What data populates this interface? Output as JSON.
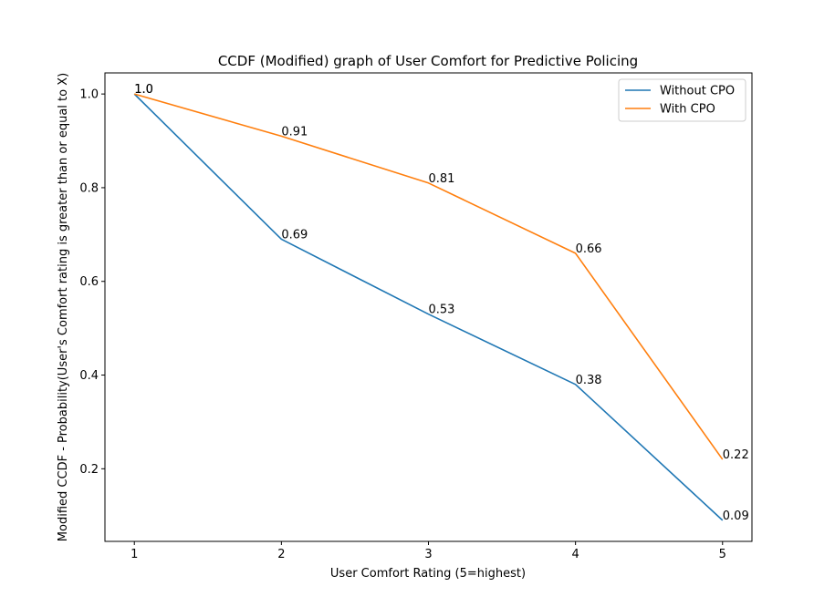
{
  "chart_data": {
    "type": "line",
    "title": "CCDF (Modified) graph of User Comfort for Predictive Policing",
    "xlabel": "User Comfort Rating (5=highest)",
    "ylabel": "Modified CCDF - Probability(User's Comfort rating is greater than or equal to X)",
    "x": [
      1,
      2,
      3,
      4,
      5
    ],
    "x_ticks": [
      "1",
      "2",
      "3",
      "4",
      "5"
    ],
    "y_ticks": [
      "0.2",
      "0.4",
      "0.6",
      "0.8",
      "1.0"
    ],
    "xlim": [
      0.8,
      5.2
    ],
    "ylim": [
      0.045,
      1.045
    ],
    "grid": false,
    "legend_position": "top-right",
    "series": [
      {
        "name": "Without CPO",
        "color": "#1f77b4",
        "values": [
          1.0,
          0.69,
          0.53,
          0.38,
          0.09
        ],
        "labels": [
          "1.0",
          "0.69",
          "0.53",
          "0.38",
          "0.09"
        ]
      },
      {
        "name": "With CPO",
        "color": "#ff7f0e",
        "values": [
          1.0,
          0.91,
          0.81,
          0.66,
          0.22
        ],
        "labels": [
          "1.0",
          "0.91",
          "0.81",
          "0.66",
          "0.22"
        ]
      }
    ]
  }
}
